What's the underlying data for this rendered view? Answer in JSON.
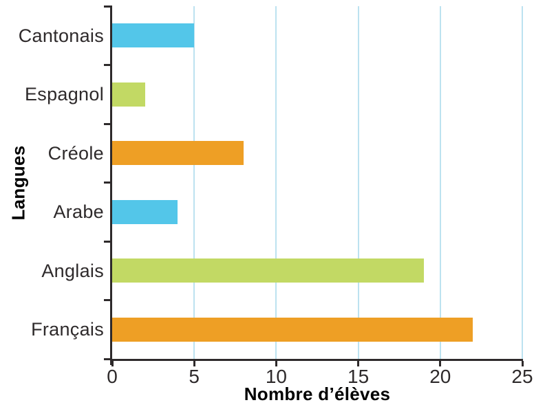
{
  "chart_data": {
    "type": "bar",
    "orientation": "horizontal",
    "title": "",
    "xlabel": "Nombre d’élèves",
    "ylabel": "Langues",
    "categories": [
      "Cantonais",
      "Espagnol",
      "Créole",
      "Arabe",
      "Anglais",
      "Français"
    ],
    "values": [
      5,
      2,
      8,
      4,
      19,
      22
    ],
    "bar_colors": [
      "#53C6E9",
      "#C2D964",
      "#EE9F25",
      "#53C6E9",
      "#C2D964",
      "#EE9F25"
    ],
    "xlim": [
      0,
      25
    ],
    "x_ticks": [
      0,
      5,
      10,
      15,
      20,
      25
    ],
    "grid": true,
    "legend": false,
    "colors": {
      "gridline": "#BCE2F0",
      "axis": "#2E2A2B",
      "text": "#2E2A2B",
      "background": "#FFFFFF"
    }
  }
}
